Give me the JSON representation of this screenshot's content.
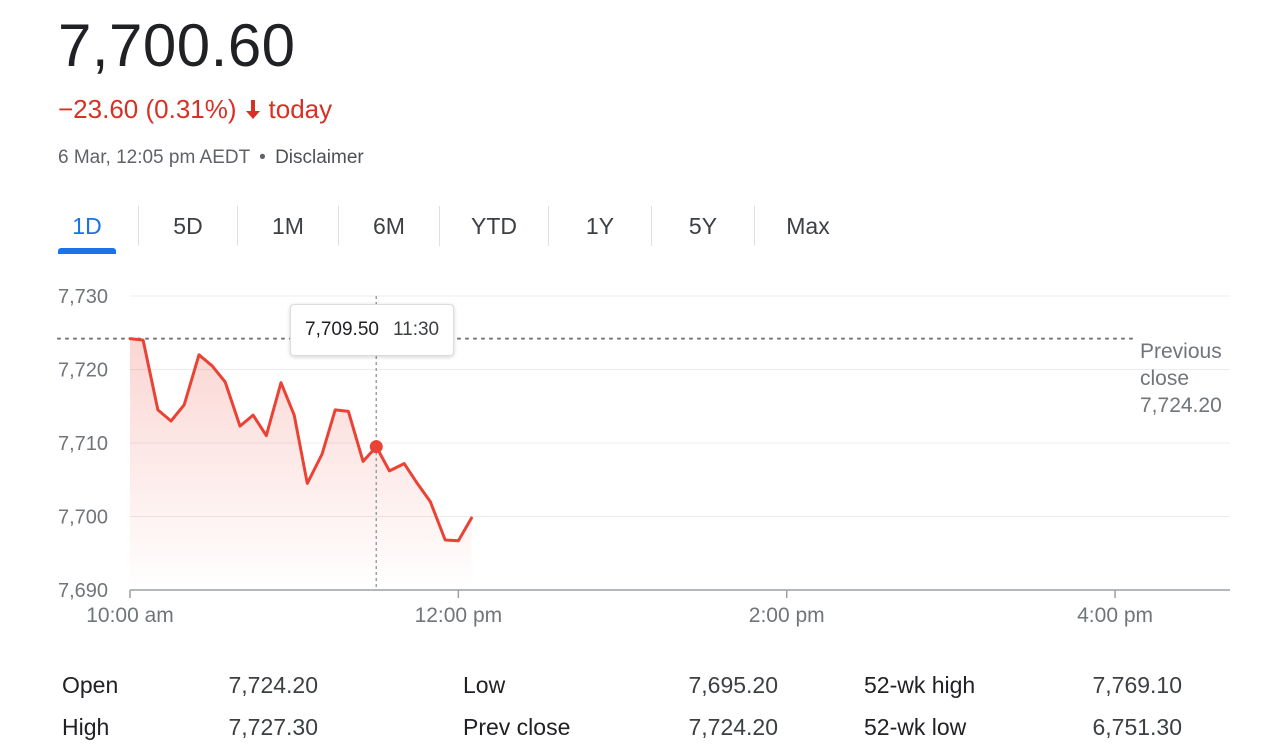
{
  "quote": {
    "price": "7,700.60",
    "change": "−23.60 (0.31%)",
    "change_suffix": "today",
    "timestamp": "6 Mar, 12:05 pm AEDT",
    "separator": "•",
    "disclaimer": "Disclaimer",
    "down_color": "#d93025"
  },
  "tabs": [
    {
      "label": "1D",
      "active": true
    },
    {
      "label": "5D",
      "active": false
    },
    {
      "label": "1M",
      "active": false
    },
    {
      "label": "6M",
      "active": false
    },
    {
      "label": "YTD",
      "active": false
    },
    {
      "label": "1Y",
      "active": false
    },
    {
      "label": "5Y",
      "active": false
    },
    {
      "label": "Max",
      "active": false
    }
  ],
  "tooltip": {
    "value": "7,709.50",
    "time": "11:30"
  },
  "chart_data": {
    "type": "line",
    "x_unit": "time of day (hours)",
    "xlim": [
      10.0,
      16.7
    ],
    "ylim": [
      7690,
      7730
    ],
    "y_ticks": [
      7690,
      7700,
      7710,
      7720,
      7730
    ],
    "y_tick_labels": [
      "7,690",
      "7,700",
      "7,710",
      "7,720",
      "7,730"
    ],
    "x_ticks": [
      10,
      12,
      14,
      16
    ],
    "x_tick_labels": [
      "10:00 am",
      "12:00 pm",
      "2:00 pm",
      "4:00 pm"
    ],
    "previous_close": 7724.2,
    "previous_close_label": [
      "Previous",
      "close",
      "7,724.20"
    ],
    "hover_x": 11.5,
    "hover_y": 7709.5,
    "line_color": "#ea4335",
    "grid": true,
    "x": [
      10.0,
      10.08,
      10.17,
      10.25,
      10.33,
      10.42,
      10.5,
      10.58,
      10.67,
      10.75,
      10.83,
      10.92,
      11.0,
      11.08,
      11.17,
      11.25,
      11.33,
      11.42,
      11.5,
      11.58,
      11.67,
      11.75,
      11.83,
      11.92,
      12.0,
      12.08
    ],
    "y": [
      7724.2,
      7724.0,
      7714.5,
      7713.0,
      7715.2,
      7722.0,
      7720.5,
      7718.3,
      7712.3,
      7713.8,
      7711.0,
      7718.2,
      7713.8,
      7704.5,
      7708.5,
      7714.5,
      7714.3,
      7707.5,
      7709.5,
      7706.2,
      7707.2,
      7704.5,
      7702.0,
      7696.8,
      7696.7,
      7699.8
    ]
  },
  "stats": [
    [
      {
        "label": "Open",
        "value": "7,724.20"
      },
      {
        "label": "Low",
        "value": "7,695.20"
      },
      {
        "label": "52-wk high",
        "value": "7,769.10"
      }
    ],
    [
      {
        "label": "High",
        "value": "7,727.30"
      },
      {
        "label": "Prev close",
        "value": "7,724.20"
      },
      {
        "label": "52-wk low",
        "value": "6,751.30"
      }
    ]
  ]
}
